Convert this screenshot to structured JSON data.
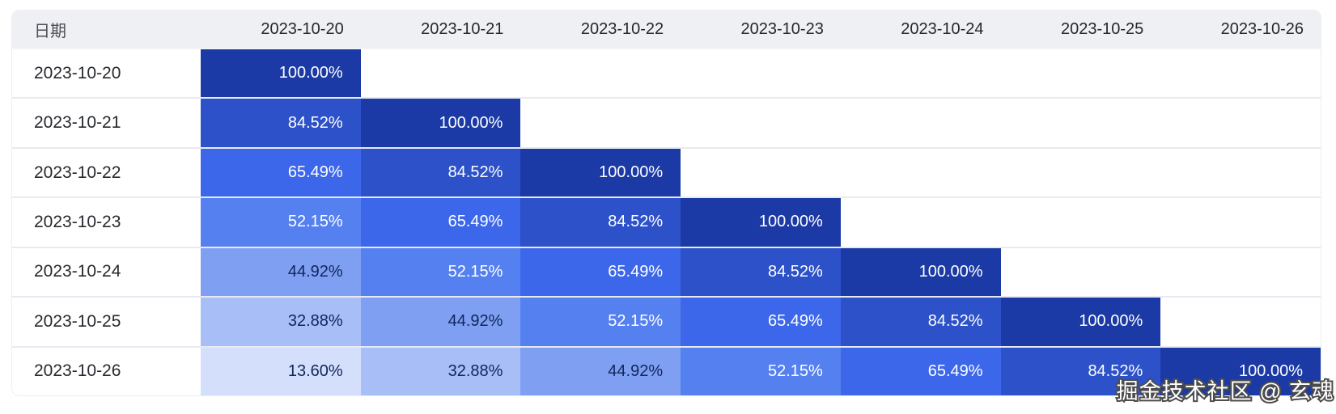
{
  "page": {
    "background": "#ffffff"
  },
  "table": {
    "corner_header": "日期",
    "columns": [
      "2023-10-20",
      "2023-10-21",
      "2023-10-22",
      "2023-10-23",
      "2023-10-24",
      "2023-10-25",
      "2023-10-26"
    ],
    "rows": [
      {
        "label": "2023-10-20",
        "values": [
          "100.00%",
          null,
          null,
          null,
          null,
          null,
          null
        ]
      },
      {
        "label": "2023-10-21",
        "values": [
          "84.52%",
          "100.00%",
          null,
          null,
          null,
          null,
          null
        ]
      },
      {
        "label": "2023-10-22",
        "values": [
          "65.49%",
          "84.52%",
          "100.00%",
          null,
          null,
          null,
          null
        ]
      },
      {
        "label": "2023-10-23",
        "values": [
          "52.15%",
          "65.49%",
          "84.52%",
          "100.00%",
          null,
          null,
          null
        ]
      },
      {
        "label": "2023-10-24",
        "values": [
          "44.92%",
          "52.15%",
          "65.49%",
          "84.52%",
          "100.00%",
          null,
          null
        ]
      },
      {
        "label": "2023-10-25",
        "values": [
          "32.88%",
          "44.92%",
          "52.15%",
          "65.49%",
          "84.52%",
          "100.00%",
          null
        ]
      },
      {
        "label": "2023-10-26",
        "values": [
          "13.60%",
          "32.88%",
          "44.92%",
          "52.15%",
          "65.49%",
          "84.52%",
          "100.00%"
        ]
      }
    ],
    "cell_styles": {
      "100.00%": {
        "bg": "#1c3aa5",
        "fg": "#ffffff"
      },
      "84.52%": {
        "bg": "#2c51c8",
        "fg": "#ffffff"
      },
      "65.49%": {
        "bg": "#3c67ea",
        "fg": "#ffffff"
      },
      "52.15%": {
        "bg": "#5580f0",
        "fg": "#ffffff"
      },
      "44.92%": {
        "bg": "#7fa0f2",
        "fg": "#11255c"
      },
      "32.88%": {
        "bg": "#a7bef6",
        "fg": "#11255c"
      },
      "13.60%": {
        "bg": "#d4e0fb",
        "fg": "#11255c"
      }
    },
    "header_bg": "#eef0f3",
    "row_separator_color": "#e8eaf1"
  },
  "chart_data": {
    "type": "heatmap",
    "title": "",
    "x_label": "日期",
    "x": [
      "2023-10-20",
      "2023-10-21",
      "2023-10-22",
      "2023-10-23",
      "2023-10-24",
      "2023-10-25",
      "2023-10-26"
    ],
    "y": [
      "2023-10-20",
      "2023-10-21",
      "2023-10-22",
      "2023-10-23",
      "2023-10-24",
      "2023-10-25",
      "2023-10-26"
    ],
    "values": [
      [
        100.0,
        null,
        null,
        null,
        null,
        null,
        null
      ],
      [
        84.52,
        100.0,
        null,
        null,
        null,
        null,
        null
      ],
      [
        65.49,
        84.52,
        100.0,
        null,
        null,
        null,
        null
      ],
      [
        52.15,
        65.49,
        84.52,
        100.0,
        null,
        null,
        null
      ],
      [
        44.92,
        52.15,
        65.49,
        84.52,
        100.0,
        null,
        null
      ],
      [
        32.88,
        44.92,
        52.15,
        65.49,
        84.52,
        100.0,
        null
      ],
      [
        13.6,
        32.88,
        44.92,
        52.15,
        65.49,
        84.52,
        100.0
      ]
    ],
    "value_unit": "%",
    "value_format": "two decimals + %",
    "color_scale": [
      {
        "value": 13.6,
        "color": "#d4e0fb"
      },
      {
        "value": 32.88,
        "color": "#a7bef6"
      },
      {
        "value": 44.92,
        "color": "#7fa0f2"
      },
      {
        "value": 52.15,
        "color": "#5580f0"
      },
      {
        "value": 65.49,
        "color": "#3c67ea"
      },
      {
        "value": 84.52,
        "color": "#2c51c8"
      },
      {
        "value": 100.0,
        "color": "#1c3aa5"
      }
    ],
    "layout": "lower-triangular matrix, empty cells white, grid off, no legend"
  },
  "watermark": {
    "text": "掘金技术社区 @ 玄魂",
    "fill_color": "#ffffff",
    "outline_color": "#4d4d4d"
  }
}
